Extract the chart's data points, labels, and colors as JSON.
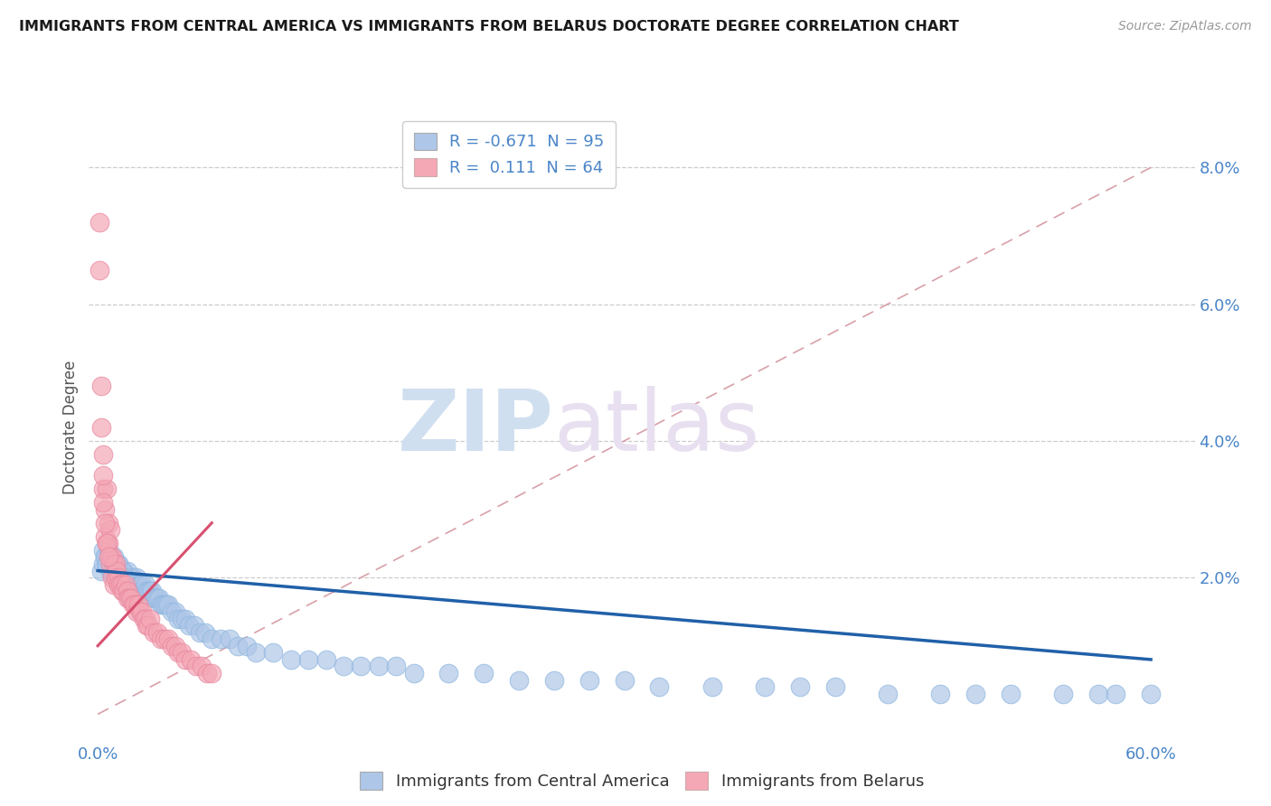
{
  "title": "IMMIGRANTS FROM CENTRAL AMERICA VS IMMIGRANTS FROM BELARUS DOCTORATE DEGREE CORRELATION CHART",
  "source": "Source: ZipAtlas.com",
  "ylabel": "Doctorate Degree",
  "yaxis_ticks": [
    "2.0%",
    "4.0%",
    "6.0%",
    "8.0%"
  ],
  "yaxis_values": [
    0.02,
    0.04,
    0.06,
    0.08
  ],
  "legend_label_top_1": "R = -0.671  N = 95",
  "legend_label_top_2": "R =  0.111  N = 64",
  "legend_label_bottom": [
    "Immigrants from Central America",
    "Immigrants from Belarus"
  ],
  "blue_color": "#aec6e8",
  "pink_color": "#f4a7b5",
  "blue_line_color": "#2060a8",
  "pink_line_color": "#d85070",
  "diag_line_color": "#d8a0a8",
  "watermark_zip": "ZIP",
  "watermark_atlas": "atlas",
  "background_color": "#ffffff",
  "blue_scatter_x": [
    0.002,
    0.003,
    0.004,
    0.005,
    0.006,
    0.007,
    0.008,
    0.009,
    0.01,
    0.011,
    0.012,
    0.013,
    0.014,
    0.015,
    0.016,
    0.017,
    0.018,
    0.019,
    0.02,
    0.021,
    0.022,
    0.023,
    0.024,
    0.025,
    0.026,
    0.027,
    0.028,
    0.029,
    0.03,
    0.031,
    0.032,
    0.033,
    0.034,
    0.035,
    0.036,
    0.037,
    0.038,
    0.039,
    0.04,
    0.042,
    0.044,
    0.046,
    0.048,
    0.05,
    0.052,
    0.055,
    0.058,
    0.061,
    0.065,
    0.07,
    0.075,
    0.08,
    0.085,
    0.09,
    0.1,
    0.11,
    0.12,
    0.13,
    0.14,
    0.15,
    0.16,
    0.17,
    0.18,
    0.2,
    0.22,
    0.24,
    0.26,
    0.28,
    0.3,
    0.32,
    0.35,
    0.38,
    0.4,
    0.42,
    0.45,
    0.48,
    0.5,
    0.52,
    0.55,
    0.57,
    0.58,
    0.6,
    0.003,
    0.004,
    0.005,
    0.006,
    0.007,
    0.008,
    0.009,
    0.01,
    0.011,
    0.012,
    0.013,
    0.014,
    0.015
  ],
  "blue_scatter_y": [
    0.021,
    0.022,
    0.023,
    0.022,
    0.023,
    0.021,
    0.022,
    0.021,
    0.022,
    0.021,
    0.022,
    0.021,
    0.02,
    0.021,
    0.02,
    0.021,
    0.02,
    0.02,
    0.02,
    0.019,
    0.02,
    0.019,
    0.019,
    0.019,
    0.018,
    0.019,
    0.018,
    0.018,
    0.018,
    0.018,
    0.017,
    0.017,
    0.017,
    0.017,
    0.016,
    0.016,
    0.016,
    0.016,
    0.016,
    0.015,
    0.015,
    0.014,
    0.014,
    0.014,
    0.013,
    0.013,
    0.012,
    0.012,
    0.011,
    0.011,
    0.011,
    0.01,
    0.01,
    0.009,
    0.009,
    0.008,
    0.008,
    0.008,
    0.007,
    0.007,
    0.007,
    0.007,
    0.006,
    0.006,
    0.006,
    0.005,
    0.005,
    0.005,
    0.005,
    0.004,
    0.004,
    0.004,
    0.004,
    0.004,
    0.003,
    0.003,
    0.003,
    0.003,
    0.003,
    0.003,
    0.003,
    0.003,
    0.024,
    0.023,
    0.022,
    0.024,
    0.023,
    0.021,
    0.023,
    0.022,
    0.021,
    0.022,
    0.02,
    0.021,
    0.02
  ],
  "pink_scatter_x": [
    0.001,
    0.001,
    0.002,
    0.002,
    0.003,
    0.003,
    0.004,
    0.004,
    0.005,
    0.005,
    0.006,
    0.006,
    0.007,
    0.007,
    0.007,
    0.008,
    0.008,
    0.009,
    0.009,
    0.01,
    0.01,
    0.011,
    0.012,
    0.012,
    0.013,
    0.014,
    0.014,
    0.015,
    0.016,
    0.017,
    0.017,
    0.018,
    0.019,
    0.02,
    0.021,
    0.022,
    0.023,
    0.024,
    0.025,
    0.026,
    0.027,
    0.028,
    0.029,
    0.03,
    0.032,
    0.034,
    0.036,
    0.038,
    0.04,
    0.042,
    0.044,
    0.046,
    0.048,
    0.05,
    0.053,
    0.056,
    0.059,
    0.062,
    0.065,
    0.003,
    0.003,
    0.004,
    0.005,
    0.006
  ],
  "pink_scatter_y": [
    0.065,
    0.072,
    0.048,
    0.042,
    0.038,
    0.033,
    0.03,
    0.026,
    0.033,
    0.025,
    0.028,
    0.025,
    0.027,
    0.023,
    0.022,
    0.023,
    0.02,
    0.022,
    0.019,
    0.022,
    0.02,
    0.021,
    0.02,
    0.019,
    0.019,
    0.019,
    0.018,
    0.018,
    0.019,
    0.018,
    0.017,
    0.017,
    0.017,
    0.016,
    0.016,
    0.015,
    0.016,
    0.015,
    0.015,
    0.014,
    0.014,
    0.013,
    0.013,
    0.014,
    0.012,
    0.012,
    0.011,
    0.011,
    0.011,
    0.01,
    0.01,
    0.009,
    0.009,
    0.008,
    0.008,
    0.007,
    0.007,
    0.006,
    0.006,
    0.035,
    0.031,
    0.028,
    0.025,
    0.023
  ],
  "blue_trend_x": [
    0.0,
    0.6
  ],
  "blue_trend_y": [
    0.021,
    0.008
  ],
  "pink_trend_x": [
    0.0,
    0.065
  ],
  "pink_trend_y": [
    0.01,
    0.028
  ],
  "diag_trend_x": [
    0.0,
    0.6
  ],
  "diag_trend_y": [
    0.0,
    0.08
  ],
  "xlim": [
    -0.005,
    0.625
  ],
  "ylim": [
    -0.004,
    0.088
  ],
  "xticks": [
    0.0,
    0.6
  ],
  "xticklabels": [
    "0.0%",
    "60.0%"
  ]
}
